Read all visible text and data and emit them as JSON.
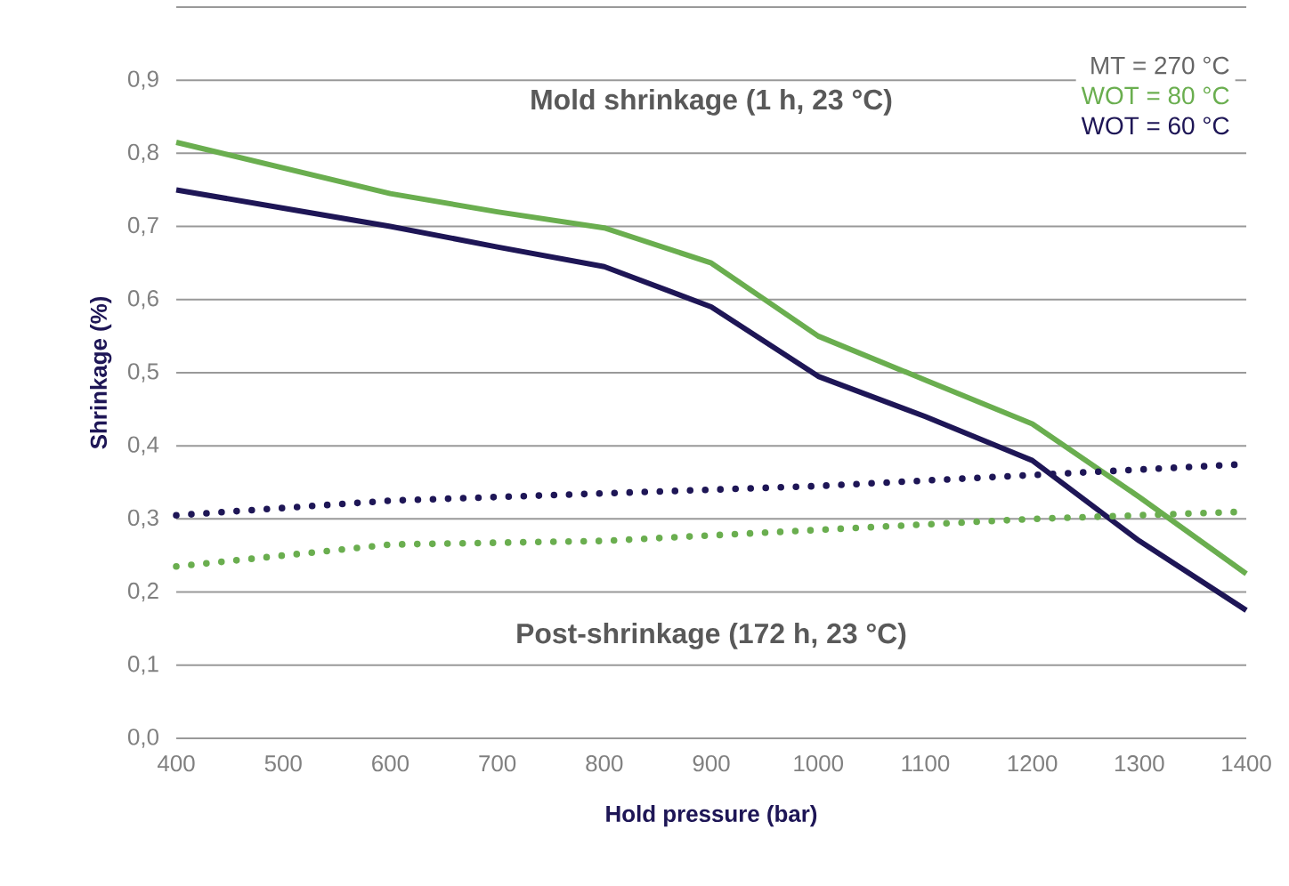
{
  "chart_data": {
    "type": "line",
    "xlabel": "Hold pressure (bar)",
    "ylabel": "Shrinkage (%)",
    "legend_title": "MT = 270 °C",
    "legend": "top right",
    "grid": "y",
    "annotations": [
      "Mold shrinkage (1 h, 23 °C)",
      "Post-shrinkage (172 h, 23 °C)"
    ],
    "xlim": [
      400,
      1400
    ],
    "xticks": [
      400,
      500,
      600,
      700,
      800,
      900,
      1000,
      1100,
      1200,
      1300,
      1400
    ],
    "ylim": [
      0,
      1.0
    ],
    "yticks": [
      {
        "value": 0,
        "label": "0,0"
      },
      {
        "value": 0.1,
        "label": "0,1"
      },
      {
        "value": 0.2,
        "label": "0,2"
      },
      {
        "value": 0.3,
        "label": "0,3"
      },
      {
        "value": 0.4,
        "label": "0,4"
      },
      {
        "value": 0.5,
        "label": "0,5"
      },
      {
        "value": 0.6,
        "label": "0,6"
      },
      {
        "value": 0.7,
        "label": "0,7"
      },
      {
        "value": 0.8,
        "label": "0,8"
      },
      {
        "value": 0.9,
        "label": "0,9"
      },
      {
        "value": 1.0,
        "label": null
      }
    ],
    "series": [
      {
        "name": "WOT = 80 °C",
        "color": "#6aae4f",
        "line_style": "solid",
        "x": [
          400,
          500,
          600,
          700,
          800,
          900,
          1000,
          1100,
          1200,
          1300,
          1400
        ],
        "values": [
          0.815,
          0.78,
          0.745,
          0.72,
          0.698,
          0.65,
          0.55,
          0.49,
          0.43,
          0.33,
          0.225
        ]
      },
      {
        "name": "WOT = 60 °C",
        "color": "#1e1656",
        "line_style": "solid",
        "x": [
          400,
          500,
          600,
          700,
          800,
          900,
          1000,
          1100,
          1200,
          1300,
          1400
        ],
        "values": [
          0.75,
          0.725,
          0.7,
          0.672,
          0.645,
          0.59,
          0.495,
          0.44,
          0.38,
          0.27,
          0.175
        ]
      },
      {
        "color": "#1e1656",
        "line_style": "dotted",
        "x": [
          400,
          600,
          800,
          1000,
          1200,
          1400
        ],
        "values": [
          0.305,
          0.325,
          0.335,
          0.345,
          0.36,
          0.375
        ]
      },
      {
        "color": "#6aae4f",
        "line_style": "dotted",
        "x": [
          400,
          600,
          800,
          1000,
          1200,
          1400
        ],
        "values": [
          0.235,
          0.265,
          0.27,
          0.285,
          0.3,
          0.31
        ]
      }
    ]
  }
}
